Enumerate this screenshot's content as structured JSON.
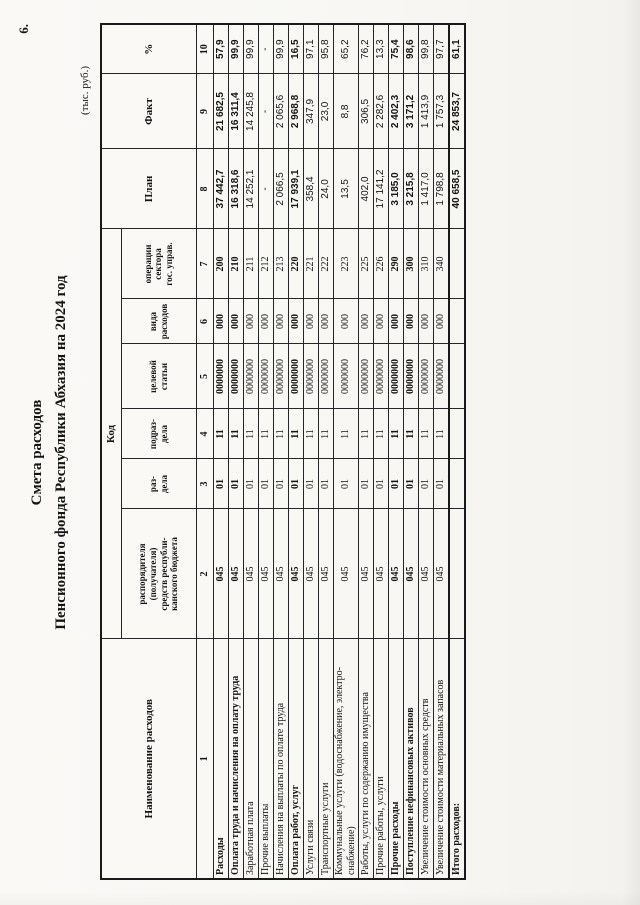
{
  "page": {
    "number": "6.",
    "units": "(тыс. руб.)"
  },
  "title": {
    "line1": "Смета расходов",
    "line2": "Пенсионного фонда Республики Абхазия на 2024 год"
  },
  "table": {
    "header": {
      "name": "Наименование расходов",
      "code_group": "Код",
      "code_cols": [
        "распорядителя\n(получателя)\nсредств республи-\nканского бюджета",
        "раз-\nдела",
        "подраз-\nдела",
        "целевой\nстатьи",
        "вида\nрасходов",
        "операции\nсектора\nгос. управ."
      ],
      "plan": "План",
      "fact": "Факт",
      "percent": "%",
      "numbering": [
        "1",
        "2",
        "3",
        "4",
        "5",
        "6",
        "7",
        "8",
        "9",
        "10"
      ]
    },
    "rows": [
      {
        "name": "Расходы",
        "bold": true,
        "total": false,
        "codes": [
          "045",
          "01",
          "11",
          "0000000",
          "000",
          "200"
        ],
        "plan": "37 442,7",
        "fact": "21 682,5",
        "pct": "57,9"
      },
      {
        "name": "Оплата труда и начисления на оплату труда",
        "bold": true,
        "total": false,
        "codes": [
          "045",
          "01",
          "11",
          "0000000",
          "000",
          "210"
        ],
        "plan": "16 318,6",
        "fact": "16 311,4",
        "pct": "99,9"
      },
      {
        "name": "Заработная плата",
        "bold": false,
        "total": false,
        "codes": [
          "045",
          "01",
          "11",
          "0000000",
          "000",
          "211"
        ],
        "plan": "14 252,1",
        "fact": "14 245,8",
        "pct": "99,9"
      },
      {
        "name": "Прочие выплаты",
        "bold": false,
        "total": false,
        "codes": [
          "045",
          "01",
          "11",
          "0000000",
          "000",
          "212"
        ],
        "plan": "-",
        "fact": "-",
        "pct": "-"
      },
      {
        "name": "Начисления на выплаты по оплате труда",
        "bold": false,
        "total": false,
        "codes": [
          "045",
          "01",
          "11",
          "0000000",
          "000",
          "213"
        ],
        "plan": "2 066,5",
        "fact": "2 065,6",
        "pct": "99,9"
      },
      {
        "name": "Оплата работ, услуг",
        "bold": true,
        "total": false,
        "codes": [
          "045",
          "01",
          "11",
          "0000000",
          "000",
          "220"
        ],
        "plan": "17 939,1",
        "fact": "2 968,8",
        "pct": "16,5"
      },
      {
        "name": "Услуги связи",
        "bold": false,
        "total": false,
        "codes": [
          "045",
          "01",
          "11",
          "0000000",
          "000",
          "221"
        ],
        "plan": "358,4",
        "fact": "347,9",
        "pct": "97,1"
      },
      {
        "name": "Транспортные услуги",
        "bold": false,
        "total": false,
        "codes": [
          "045",
          "01",
          "11",
          "0000000",
          "000",
          "222"
        ],
        "plan": "24,0",
        "fact": "23,0",
        "pct": "95,8"
      },
      {
        "name": "Коммунальные услуги (водоснабжение, электро-снабжение)",
        "bold": false,
        "total": false,
        "codes": [
          "045",
          "01",
          "11",
          "0000000",
          "000",
          "223"
        ],
        "plan": "13,5",
        "fact": "8,8",
        "pct": "65,2"
      },
      {
        "name": "Работы, услуги по содержанию имущества",
        "bold": false,
        "total": false,
        "codes": [
          "045",
          "01",
          "11",
          "0000000",
          "000",
          "225"
        ],
        "plan": "402,0",
        "fact": "306,5",
        "pct": "76,2"
      },
      {
        "name": "Прочие работы, услуги",
        "bold": false,
        "total": false,
        "codes": [
          "045",
          "01",
          "11",
          "0000000",
          "000",
          "226"
        ],
        "plan": "17 141,2",
        "fact": "2 282,6",
        "pct": "13,3"
      },
      {
        "name": "Прочие расходы",
        "bold": true,
        "total": false,
        "codes": [
          "045",
          "01",
          "11",
          "0000000",
          "000",
          "290"
        ],
        "plan": "3 185,0",
        "fact": "2 402,3",
        "pct": "75,4"
      },
      {
        "name": "Поступление нефинансовых активов",
        "bold": true,
        "total": false,
        "codes": [
          "045",
          "01",
          "11",
          "0000000",
          "000",
          "300"
        ],
        "plan": "3 215,8",
        "fact": "3 171,2",
        "pct": "98,6"
      },
      {
        "name": "Увеличение стоимости основных средств",
        "bold": false,
        "total": false,
        "codes": [
          "045",
          "01",
          "11",
          "0000000",
          "000",
          "310"
        ],
        "plan": "1 417,0",
        "fact": "1 413,9",
        "pct": "99,8"
      },
      {
        "name": "Увеличение стоимости материальных запасов",
        "bold": false,
        "total": false,
        "codes": [
          "045",
          "01",
          "11",
          "0000000",
          "000",
          "340"
        ],
        "plan": "1 798,8",
        "fact": "1 757,3",
        "pct": "97,7"
      },
      {
        "name": "Итого расходов:",
        "bold": true,
        "total": true,
        "codes": [
          "",
          "",
          "",
          "",
          "",
          ""
        ],
        "plan": "40 658,5",
        "fact": "24 853,7",
        "pct": "61,1"
      }
    ]
  }
}
